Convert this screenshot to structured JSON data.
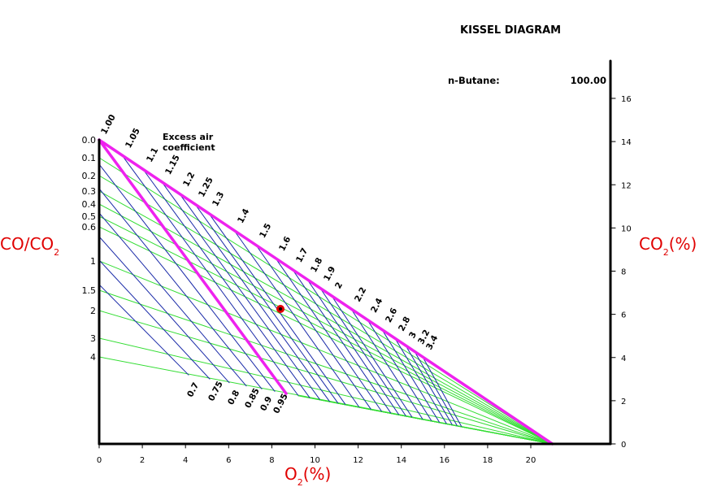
{
  "title": "KISSEL DIAGRAM",
  "fuel": {
    "label": "n-Butane:",
    "value": "100.00"
  },
  "caption": {
    "line1": "Excess air",
    "line2": "coefficient"
  },
  "left_axis_label": {
    "main": "CO/CO",
    "sub": "2"
  },
  "right_axis_label": {
    "main": "CO",
    "sub": "2",
    "tail": "(%)"
  },
  "bottom_axis_label": {
    "main": "O",
    "sub": "2",
    "tail": "(%)"
  },
  "colors": {
    "lambda_lines": "#1a2aa8",
    "ratio_lines": "#33dd33",
    "boundary": "#ee22ee",
    "marker": "#e00000",
    "labels_red": "#e00000"
  },
  "chart_data": {
    "type": "line",
    "title": "KISSEL DIAGRAM",
    "xlabel": "O2(%)",
    "ylabel_right": "CO2(%)",
    "ylabel_left": "CO/CO2",
    "xlim": [
      0,
      21
    ],
    "ylim": [
      0,
      16
    ],
    "x_ticks": [
      "0",
      "2",
      "4",
      "6",
      "8",
      "10",
      "12",
      "14",
      "16",
      "18",
      "20"
    ],
    "y_ticks": [
      "0",
      "2",
      "4",
      "6",
      "8",
      "10",
      "12",
      "14",
      "16"
    ],
    "ratio_ticks": [
      "0.0",
      "0.1",
      "0.2",
      "0.3",
      "0.4",
      "0.5",
      "0.6",
      "1",
      "1.5",
      "2",
      "3",
      "4"
    ],
    "lambda_top": [
      "1.00",
      "1.05",
      "1.1",
      "1.15",
      "1.2",
      "1.25",
      "1.3",
      "1.4",
      "1.5",
      "1.6",
      "1.7",
      "1.8",
      "1.9",
      "2",
      "2.2",
      "2.4",
      "2.6",
      "2.8",
      "3",
      "3.2",
      "3.4"
    ],
    "lambda_bottom": [
      "0.7",
      "0.75",
      "0.8",
      "0.85",
      "0.9",
      "0.95"
    ],
    "max_co2": 14.08,
    "marker": {
      "o2": 8.4,
      "co2": 6.25
    }
  }
}
